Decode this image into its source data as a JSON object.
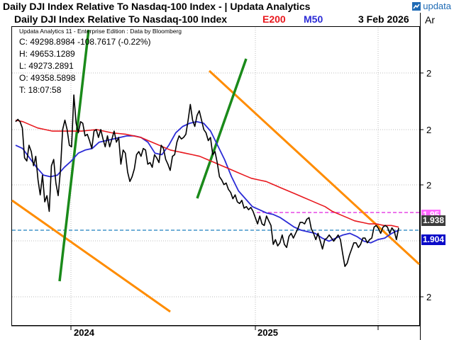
{
  "window_title": "Daily DJI Index Relative To Nasdaq-100 Index - | Updata Analytics",
  "logo_text": "updata",
  "chart_header": {
    "title": "Daily DJI Index Relative To Nasdaq-100 Index",
    "e200_label": "E200",
    "m50_label": "M50",
    "date": "3 Feb 2026",
    "axis_corner": "Ar"
  },
  "info": {
    "edition": "Updata Analytics 11 - Enterprise Edition : Data by Bloomberg",
    "close": "C: 49298.8984 -108.7617 (-0.22%)",
    "high": "H: 49653.1289",
    "low": "L: 49273.2891",
    "open": "O: 49358.5898",
    "time": "T: 18:07:58"
  },
  "colors": {
    "price": "#000000",
    "e200": "#e8181e",
    "m50": "#2b2bd6",
    "trend_orange": "#ff8c00",
    "trend_green": "#1a8a1a",
    "resistance": "#e020e0",
    "support": "#1f7fbf",
    "tag_pink": "#ff66ff",
    "tag_grey": "#3c3c3c",
    "tag_blue": "#0a0ac8"
  },
  "value_tags": {
    "resistance": "1.95",
    "close": "1.938",
    "support": "1.904"
  },
  "chart_data": {
    "type": "line",
    "title": "Daily DJI Index Relative To Nasdaq-100 Index",
    "xlabel": "",
    "ylabel": "",
    "x_labels": [
      "2024",
      "2025"
    ],
    "y_tick_labels": [
      "2",
      "2",
      "2",
      "2"
    ],
    "grid": true,
    "horizontal_levels": [
      {
        "name": "resistance",
        "value": 1.95
      },
      {
        "name": "support",
        "value": 1.904
      }
    ],
    "last_close": 1.938,
    "series": [
      {
        "name": "Price",
        "values": [
          0.69,
          0.705,
          0.69,
          0.65,
          0.46,
          0.44,
          0.54,
          0.5,
          0.41,
          0.47,
          0.32,
          0.225,
          0.35,
          0.18,
          0.22,
          0.12,
          0.41,
          0.45,
          0.3,
          0.22,
          0.38,
          0.64,
          0.7,
          0.64,
          0.54,
          0.53,
          0.86,
          0.68,
          0.62,
          0.69,
          0.68,
          0.6,
          0.61,
          0.57,
          0.52,
          0.63,
          0.64,
          0.59,
          0.64,
          0.58,
          0.53,
          0.6,
          0.53,
          0.58,
          0.63,
          0.56,
          0.59,
          0.42,
          0.51,
          0.49,
          0.37,
          0.31,
          0.34,
          0.39,
          0.48,
          0.5,
          0.47,
          0.52,
          0.51,
          0.42,
          0.43,
          0.4,
          0.48,
          0.46,
          0.43,
          0.54,
          0.52,
          0.45,
          0.42,
          0.38,
          0.47,
          0.48,
          0.56,
          0.6,
          0.58,
          0.59,
          0.61,
          0.7,
          0.8,
          0.7,
          0.66,
          0.73,
          0.76,
          0.7,
          0.64,
          0.62,
          0.57,
          0.59,
          0.48,
          0.5,
          0.43,
          0.34,
          0.32,
          0.29,
          0.3,
          0.26,
          0.24,
          0.2,
          0.225,
          0.18,
          0.17,
          0.19,
          0.14,
          0.15,
          0.13,
          0.145,
          0.12,
          0.08,
          0.04,
          0.09,
          0.04,
          0.03,
          0.09,
          0.06,
          0.03,
          -0.09,
          -0.06,
          -0.1,
          -0.08,
          -0.03,
          -0.09,
          -0.11,
          -0.04,
          -0.02,
          -0.05,
          -0.02,
          0.01,
          0.05,
          0.05,
          0.04,
          0.07,
          0.08,
          0.01,
          -0.02,
          -0.06,
          -0.02,
          -0.07,
          -0.12,
          -0.06,
          -0.05,
          -0.03,
          -0.05,
          -0.07,
          -0.05,
          -0.03,
          -0.06,
          -0.15,
          -0.23,
          -0.21,
          -0.16,
          -0.12,
          -0.08,
          -0.08,
          -0.11,
          -0.09,
          -0.05,
          -0.05,
          -0.08,
          -0.06,
          -0.05,
          0.02,
          0.03,
          0.01,
          -0.02,
          0.02,
          0.03,
          0.02,
          -0.02,
          0.015,
          -0.005,
          -0.06,
          0.015
        ]
      },
      {
        "name": "E200",
        "values": [
          0.7,
          0.69,
          0.67,
          0.65,
          0.64,
          0.63,
          0.63,
          0.63,
          0.63,
          0.63,
          0.635,
          0.64,
          0.63,
          0.62,
          0.615,
          0.61,
          0.6,
          0.59,
          0.57,
          0.55,
          0.53,
          0.51,
          0.5,
          0.49,
          0.48,
          0.47,
          0.45,
          0.43,
          0.41,
          0.39,
          0.37,
          0.35,
          0.33,
          0.32,
          0.31,
          0.29,
          0.27,
          0.25,
          0.23,
          0.21,
          0.19,
          0.17,
          0.15,
          0.12,
          0.1,
          0.08,
          0.06,
          0.05,
          0.04,
          0.04,
          0.03,
          0.03,
          0.02
        ]
      },
      {
        "name": "M50",
        "values": [
          0.54,
          0.52,
          0.46,
          0.4,
          0.35,
          0.34,
          0.35,
          0.4,
          0.44,
          0.49,
          0.51,
          0.52,
          0.56,
          0.57,
          0.58,
          0.59,
          0.6,
          0.6,
          0.59,
          0.56,
          0.49,
          0.48,
          0.54,
          0.62,
          0.66,
          0.68,
          0.69,
          0.68,
          0.63,
          0.54,
          0.45,
          0.34,
          0.25,
          0.2,
          0.15,
          0.13,
          0.11,
          0.1,
          0.08,
          0.05,
          0.02,
          0.0,
          -0.01,
          -0.02,
          -0.05,
          -0.07,
          -0.05,
          -0.03,
          -0.02,
          -0.04,
          -0.07,
          -0.08,
          -0.06,
          -0.05,
          -0.02,
          0.0
        ]
      }
    ]
  }
}
